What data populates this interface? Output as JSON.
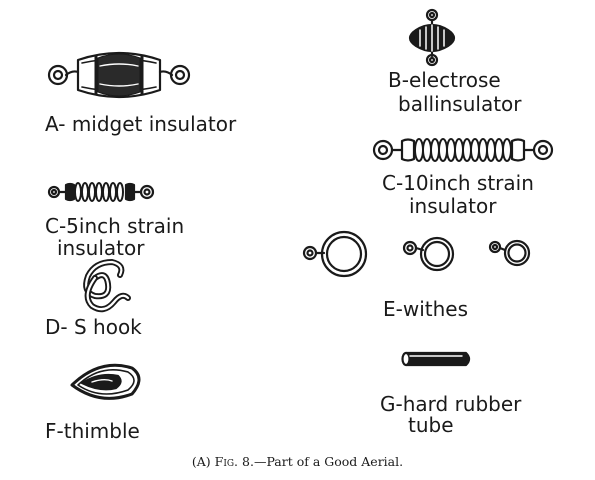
{
  "labels": {
    "a": "A- midget insulator",
    "b_line1": "B-electrose",
    "b_line2": "ballinsulator",
    "c10_line1": "C-10inch strain",
    "c10_line2": "insulator",
    "c5_line1": "C-5inch strain",
    "c5_line2": "insulator",
    "d": "D- S hook",
    "e": "E-withes",
    "f": "F-thimble",
    "g_line1": "G-hard rubber",
    "g_line2": "tube"
  },
  "caption": {
    "prefix": "(A)",
    "fig": "Fig. 8.",
    "text": "—Part of a Good Aerial."
  },
  "colors": {
    "ink": "#1a1a1a",
    "paper": "#ffffff"
  }
}
